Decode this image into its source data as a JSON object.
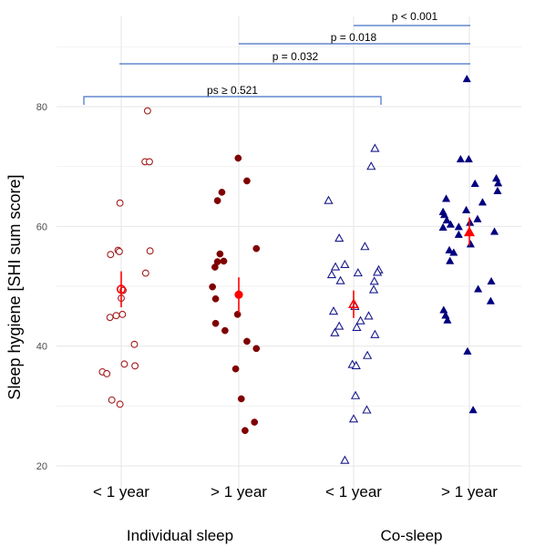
{
  "chart_data": {
    "type": "scatter",
    "title": "",
    "ylabel": "Sleep hygiene [SHI sum score]",
    "ylim": [
      18,
      90
    ],
    "yticks": [
      20,
      40,
      60,
      80
    ],
    "grid": true,
    "categories": [
      "< 1 year",
      "> 1 year",
      "< 1 year",
      "> 1 year"
    ],
    "groups": [
      {
        "label": "Individual sleep",
        "category_indices": [
          0,
          1
        ]
      },
      {
        "label": "Co-sleep",
        "category_indices": [
          2,
          3
        ]
      }
    ],
    "series": [
      {
        "category_index": 0,
        "marker": "circle-open",
        "color": "#a31d1d",
        "mean": 49.5,
        "ci": [
          46.5,
          52.5
        ],
        "points": [
          {
            "dx": 0.42,
            "y": 79.3
          },
          {
            "dx": 0.38,
            "y": 70.8
          },
          {
            "dx": 0.45,
            "y": 70.8
          },
          {
            "dx": -0.02,
            "y": 63.9
          },
          {
            "dx": -0.05,
            "y": 56.0
          },
          {
            "dx": -0.03,
            "y": 55.8
          },
          {
            "dx": -0.17,
            "y": 55.3
          },
          {
            "dx": 0.46,
            "y": 55.9
          },
          {
            "dx": 0.39,
            "y": 52.2
          },
          {
            "dx": 0.03,
            "y": 49.3
          },
          {
            "dx": 0.0,
            "y": 48.0
          },
          {
            "dx": 0.02,
            "y": 45.3
          },
          {
            "dx": -0.08,
            "y": 45.1
          },
          {
            "dx": -0.18,
            "y": 44.8
          },
          {
            "dx": 0.21,
            "y": 40.3
          },
          {
            "dx": 0.05,
            "y": 37.0
          },
          {
            "dx": 0.22,
            "y": 36.7
          },
          {
            "dx": -0.3,
            "y": 35.7
          },
          {
            "dx": -0.23,
            "y": 35.4
          },
          {
            "dx": -0.15,
            "y": 31.0
          },
          {
            "dx": -0.02,
            "y": 30.3
          }
        ]
      },
      {
        "category_index": 1,
        "marker": "circle-filled",
        "color": "#7f0000",
        "mean": 48.6,
        "ci": [
          45.6,
          51.5
        ],
        "points": [
          {
            "dx": -0.01,
            "y": 71.4
          },
          {
            "dx": 0.13,
            "y": 67.6
          },
          {
            "dx": -0.27,
            "y": 65.7
          },
          {
            "dx": -0.34,
            "y": 64.3
          },
          {
            "dx": 0.28,
            "y": 56.3
          },
          {
            "dx": -0.3,
            "y": 55.4
          },
          {
            "dx": -0.24,
            "y": 54.2
          },
          {
            "dx": -0.34,
            "y": 54.1
          },
          {
            "dx": -0.38,
            "y": 53.2
          },
          {
            "dx": -0.42,
            "y": 49.9
          },
          {
            "dx": -0.37,
            "y": 47.9
          },
          {
            "dx": -0.02,
            "y": 45.3
          },
          {
            "dx": -0.37,
            "y": 43.8
          },
          {
            "dx": -0.22,
            "y": 42.6
          },
          {
            "dx": 0.13,
            "y": 40.8
          },
          {
            "dx": 0.28,
            "y": 39.6
          },
          {
            "dx": -0.05,
            "y": 36.2
          },
          {
            "dx": 0.04,
            "y": 31.2
          },
          {
            "dx": 0.25,
            "y": 27.3
          },
          {
            "dx": 0.1,
            "y": 25.9
          }
        ]
      },
      {
        "category_index": 2,
        "marker": "triangle-open",
        "color": "#1a1a8c",
        "mean": 47.0,
        "ci": [
          44.7,
          49.3
        ],
        "points": [
          {
            "dx": 0.34,
            "y": 73.0
          },
          {
            "dx": 0.28,
            "y": 70.0
          },
          {
            "dx": -0.4,
            "y": 64.3
          },
          {
            "dx": -0.23,
            "y": 58.0
          },
          {
            "dx": 0.18,
            "y": 56.6
          },
          {
            "dx": -0.14,
            "y": 53.6
          },
          {
            "dx": -0.29,
            "y": 53.2
          },
          {
            "dx": 0.4,
            "y": 52.7
          },
          {
            "dx": 0.38,
            "y": 52.3
          },
          {
            "dx": -0.35,
            "y": 51.9
          },
          {
            "dx": 0.07,
            "y": 52.2
          },
          {
            "dx": -0.21,
            "y": 50.9
          },
          {
            "dx": 0.33,
            "y": 50.8
          },
          {
            "dx": 0.32,
            "y": 49.4
          },
          {
            "dx": 0.02,
            "y": 46.6
          },
          {
            "dx": -0.32,
            "y": 45.8
          },
          {
            "dx": 0.24,
            "y": 45.0
          },
          {
            "dx": 0.11,
            "y": 44.2
          },
          {
            "dx": 0.05,
            "y": 43.1
          },
          {
            "dx": -0.23,
            "y": 43.3
          },
          {
            "dx": -0.3,
            "y": 42.2
          },
          {
            "dx": 0.34,
            "y": 41.9
          },
          {
            "dx": 0.22,
            "y": 38.4
          },
          {
            "dx": -0.02,
            "y": 36.9
          },
          {
            "dx": 0.04,
            "y": 36.7
          },
          {
            "dx": 0.03,
            "y": 31.7
          },
          {
            "dx": 0.21,
            "y": 29.3
          },
          {
            "dx": 0.0,
            "y": 27.8
          },
          {
            "dx": -0.14,
            "y": 20.9
          }
        ]
      },
      {
        "category_index": 3,
        "marker": "triangle-filled",
        "color": "#00007f",
        "mean": 59.0,
        "ci": [
          56.8,
          61.5
        ],
        "points": [
          {
            "dx": -0.04,
            "y": 84.6
          },
          {
            "dx": -0.14,
            "y": 71.2
          },
          {
            "dx": -0.01,
            "y": 71.2
          },
          {
            "dx": 0.09,
            "y": 67.1
          },
          {
            "dx": 0.43,
            "y": 68.0
          },
          {
            "dx": 0.46,
            "y": 67.2
          },
          {
            "dx": 0.45,
            "y": 65.9
          },
          {
            "dx": -0.37,
            "y": 64.6
          },
          {
            "dx": 0.21,
            "y": 64.0
          },
          {
            "dx": -0.05,
            "y": 62.7
          },
          {
            "dx": -0.42,
            "y": 62.4
          },
          {
            "dx": -0.4,
            "y": 61.9
          },
          {
            "dx": 0.13,
            "y": 61.2
          },
          {
            "dx": -0.36,
            "y": 61.0
          },
          {
            "dx": 0.01,
            "y": 60.6
          },
          {
            "dx": -0.3,
            "y": 60.3
          },
          {
            "dx": -0.17,
            "y": 59.9
          },
          {
            "dx": -0.42,
            "y": 59.8
          },
          {
            "dx": 0.4,
            "y": 59.1
          },
          {
            "dx": -0.17,
            "y": 58.6
          },
          {
            "dx": 0.02,
            "y": 57.0
          },
          {
            "dx": -0.32,
            "y": 56.0
          },
          {
            "dx": -0.25,
            "y": 55.6
          },
          {
            "dx": -0.31,
            "y": 54.2
          },
          {
            "dx": 0.35,
            "y": 50.8
          },
          {
            "dx": 0.14,
            "y": 49.5
          },
          {
            "dx": 0.34,
            "y": 47.5
          },
          {
            "dx": -0.41,
            "y": 46.0
          },
          {
            "dx": -0.38,
            "y": 45.1
          },
          {
            "dx": -0.35,
            "y": 44.3
          },
          {
            "dx": -0.03,
            "y": 39.1
          },
          {
            "dx": 0.06,
            "y": 29.3
          }
        ]
      }
    ],
    "mean_color": "#ff0000",
    "comparisons": [
      {
        "label": "ps ≥ 0.521",
        "from": 0,
        "to": 2,
        "y": 88.0
      },
      {
        "label": "p = 0.032",
        "from": 0,
        "to": 3,
        "y": 91.0
      },
      {
        "label": "p = 0.018",
        "from": 1,
        "to": 3,
        "y": 93.0
      },
      {
        "label": "p  < 0.001",
        "from": 2,
        "to": 3,
        "y": 95.0
      }
    ],
    "bracket_color": "#4472c4"
  }
}
